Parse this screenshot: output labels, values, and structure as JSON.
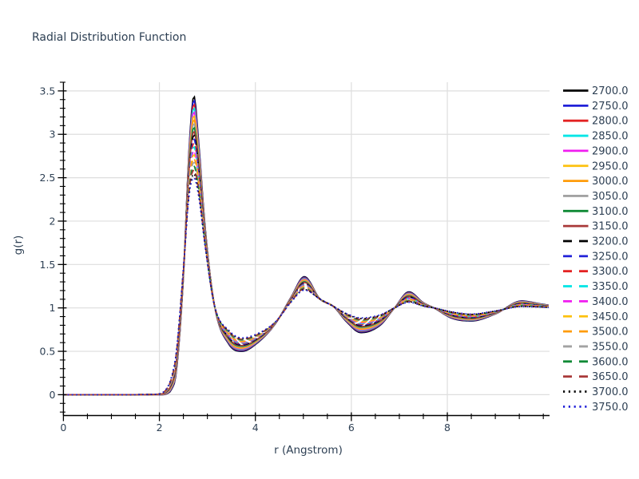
{
  "chart": {
    "title": "Radial Distribution Function"
  },
  "colors": {
    "text": "#2e4054",
    "grid": "#dedede",
    "axis": "#000000",
    "background": "#ffffff"
  },
  "chart_data": {
    "type": "line",
    "title": "Radial Distribution Function",
    "xlabel": "r (Angstrom)",
    "ylabel": "g(r)",
    "xlim": [
      0,
      10.13
    ],
    "ylim": [
      -0.24,
      3.6
    ],
    "x_ticks": [
      0,
      2,
      4,
      6,
      8
    ],
    "x_tick_labels": [
      "0",
      "2",
      "4",
      "6",
      "8"
    ],
    "x_minor_step": 0.5,
    "y_ticks": [
      0,
      0.5,
      1,
      1.5,
      2,
      2.5,
      3,
      3.5
    ],
    "y_tick_labels": [
      "0",
      "0.5",
      "1",
      "1.5",
      "2",
      "2.5",
      "3",
      "3.5"
    ],
    "y_minor_step": 0.1,
    "grid": true,
    "legend_position": "right-outside",
    "x": [
      0,
      1.0,
      1.9,
      2.05,
      2.15,
      2.25,
      2.35,
      2.5,
      2.62,
      2.72,
      2.82,
      2.95,
      3.15,
      3.45,
      3.72,
      4.05,
      4.42,
      4.75,
      5.02,
      5.35,
      5.62,
      5.9,
      6.2,
      6.6,
      6.9,
      7.2,
      7.5,
      7.72,
      8.1,
      8.5,
      9.0,
      9.55,
      9.9,
      10.13
    ],
    "envelope": {
      "note": "22 temperature series lie between the coldest (2700) and hottest (3750) profiles; each series is a linear blend by s=(T-2700)/1050",
      "T_cold": 2700,
      "g_cold": [
        0,
        0,
        0,
        0,
        0.01,
        0.06,
        0.25,
        1.35,
        2.85,
        3.44,
        2.9,
        1.95,
        1.02,
        0.58,
        0.5,
        0.6,
        0.82,
        1.13,
        1.36,
        1.1,
        1.02,
        0.84,
        0.715,
        0.8,
        1.0,
        1.185,
        1.06,
        1.0,
        0.88,
        0.85,
        0.93,
        1.08,
        1.05,
        1.03
      ],
      "T_hot": 3750,
      "g_hot": [
        0,
        0,
        0.005,
        0.02,
        0.07,
        0.2,
        0.48,
        1.45,
        2.3,
        2.5,
        2.28,
        1.72,
        1.02,
        0.74,
        0.655,
        0.705,
        0.84,
        1.07,
        1.205,
        1.1,
        1.02,
        0.935,
        0.885,
        0.92,
        1.0,
        1.065,
        1.02,
        1.0,
        0.955,
        0.93,
        0.965,
        1.015,
        1.01,
        1.005
      ]
    },
    "series": [
      {
        "label": "2700.0",
        "temperature": 2700,
        "color": "#000000",
        "dash": "solid"
      },
      {
        "label": "2750.0",
        "temperature": 2750,
        "color": "#2121d8",
        "dash": "solid"
      },
      {
        "label": "2800.0",
        "temperature": 2800,
        "color": "#e32222",
        "dash": "solid"
      },
      {
        "label": "2850.0",
        "temperature": 2850,
        "color": "#00e6e6",
        "dash": "solid"
      },
      {
        "label": "2900.0",
        "temperature": 2900,
        "color": "#f01df0",
        "dash": "solid"
      },
      {
        "label": "2950.0",
        "temperature": 2950,
        "color": "#fdc10e",
        "dash": "solid"
      },
      {
        "label": "3000.0",
        "temperature": 3000,
        "color": "#ff9c0a",
        "dash": "solid"
      },
      {
        "label": "3050.0",
        "temperature": 3050,
        "color": "#a2a2a2",
        "dash": "solid"
      },
      {
        "label": "3100.0",
        "temperature": 3100,
        "color": "#108a36",
        "dash": "solid"
      },
      {
        "label": "3150.0",
        "temperature": 3150,
        "color": "#a93939",
        "dash": "solid"
      },
      {
        "label": "3200.0",
        "temperature": 3200,
        "color": "#000000",
        "dash": "dashed"
      },
      {
        "label": "3250.0",
        "temperature": 3250,
        "color": "#2121d8",
        "dash": "dashed"
      },
      {
        "label": "3300.0",
        "temperature": 3300,
        "color": "#e32222",
        "dash": "dashed"
      },
      {
        "label": "3350.0",
        "temperature": 3350,
        "color": "#00e6e6",
        "dash": "dashed"
      },
      {
        "label": "3400.0",
        "temperature": 3400,
        "color": "#f01df0",
        "dash": "dashed"
      },
      {
        "label": "3450.0",
        "temperature": 3450,
        "color": "#fdc10e",
        "dash": "dashed"
      },
      {
        "label": "3500.0",
        "temperature": 3500,
        "color": "#ff9c0a",
        "dash": "dashed"
      },
      {
        "label": "3550.0",
        "temperature": 3550,
        "color": "#a2a2a2",
        "dash": "dashed"
      },
      {
        "label": "3600.0",
        "temperature": 3600,
        "color": "#108a36",
        "dash": "dashed"
      },
      {
        "label": "3650.0",
        "temperature": 3650,
        "color": "#a93939",
        "dash": "dashed"
      },
      {
        "label": "3700.0",
        "temperature": 3700,
        "color": "#000000",
        "dash": "dotted"
      },
      {
        "label": "3750.0",
        "temperature": 3750,
        "color": "#2121d8",
        "dash": "dotted"
      }
    ]
  }
}
